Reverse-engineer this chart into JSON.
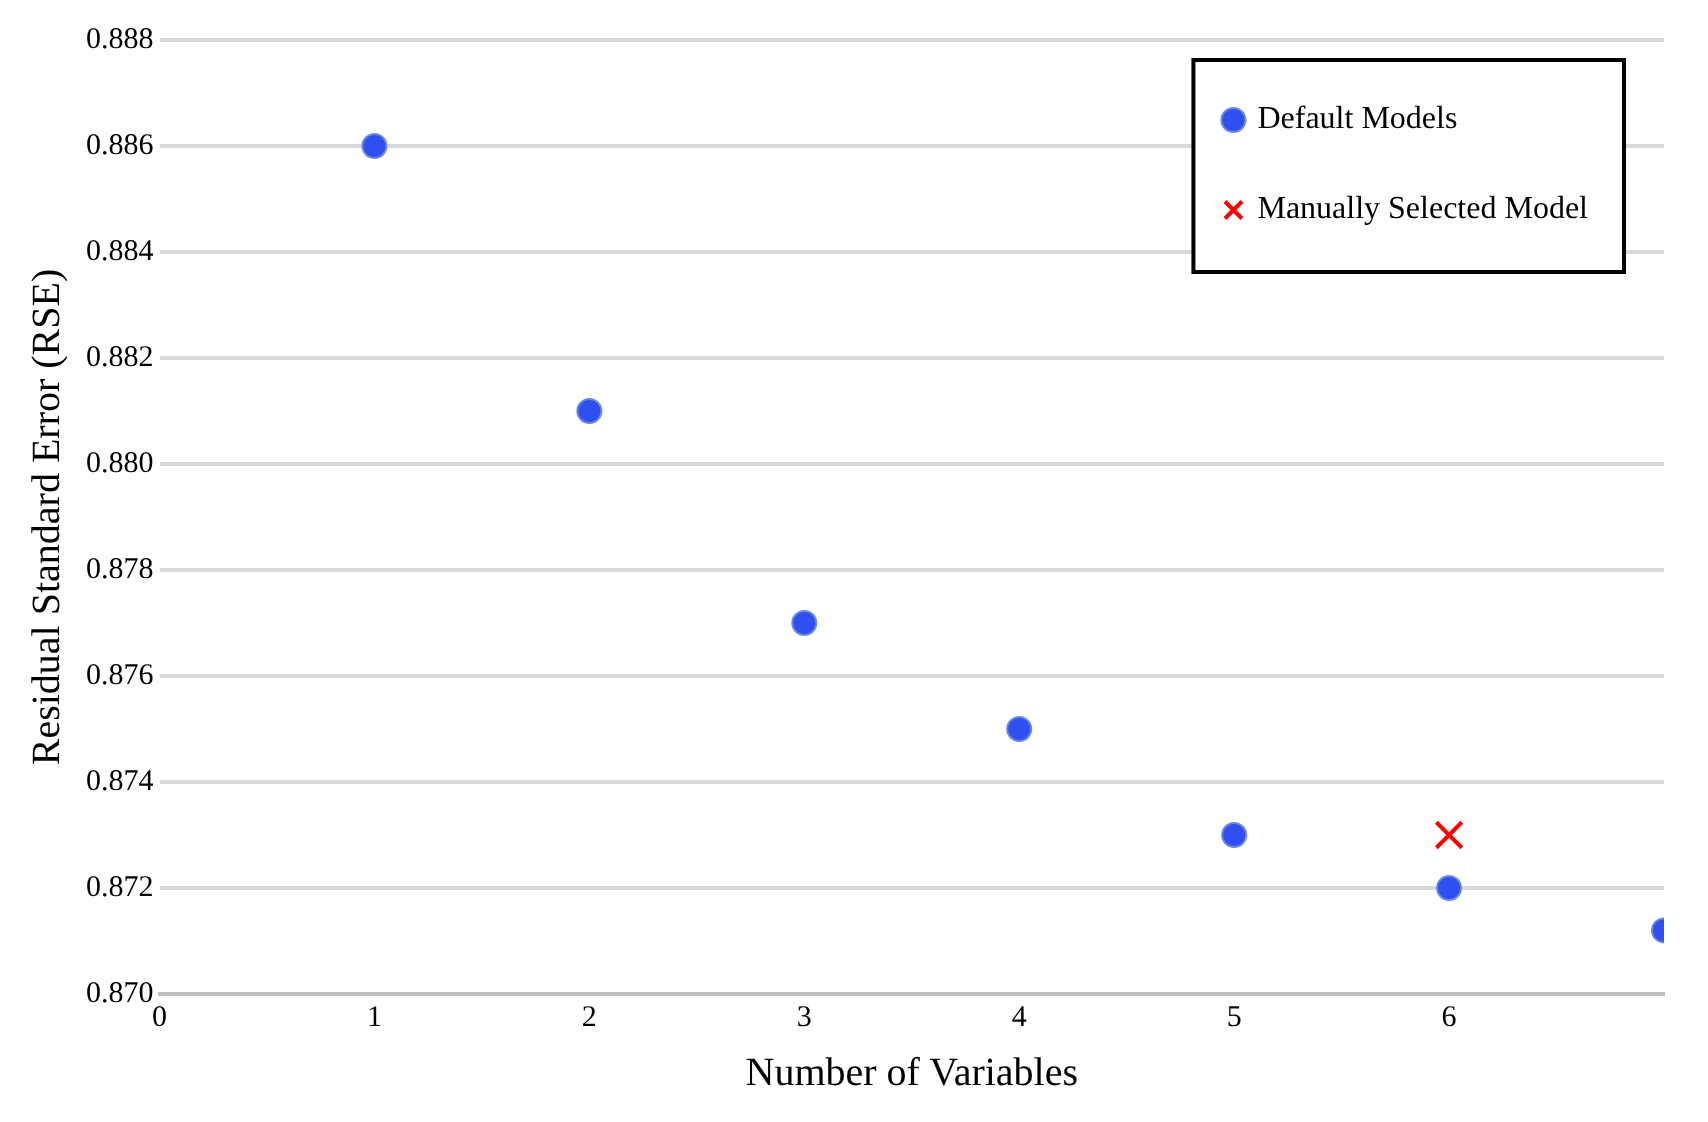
{
  "chart_data": {
    "type": "scatter",
    "xlabel": "Number of Variables",
    "ylabel": "Residual Standard Error (RSE)",
    "series": [
      {
        "name": "Default Models",
        "color": "#2f4ff0",
        "marker": "circle",
        "x": [
          1,
          2,
          3,
          4,
          5,
          6,
          7
        ],
        "values": [
          0.886,
          0.881,
          0.877,
          0.875,
          0.873,
          0.872,
          0.8712
        ]
      },
      {
        "name": "Manually Selected Model",
        "color": "#ff0000",
        "marker": "cross",
        "x": [
          6
        ],
        "values": [
          0.873
        ]
      }
    ],
    "xlim": [
      0,
      7
    ],
    "xticks": [
      0,
      1,
      2,
      3,
      4,
      5,
      6
    ],
    "ylim": [
      0.87,
      0.888
    ],
    "yticks": [
      {
        "value": 0.87,
        "label": "0.870"
      },
      {
        "value": 0.872,
        "label": "0.872"
      },
      {
        "value": 0.874,
        "label": "0.874"
      },
      {
        "value": 0.876,
        "label": "0.876"
      },
      {
        "value": 0.878,
        "label": "0.878"
      },
      {
        "value": 0.88,
        "label": "0.880"
      },
      {
        "value": 0.882,
        "label": "0.882"
      },
      {
        "value": 0.884,
        "label": "0.884"
      },
      {
        "value": 0.886,
        "label": "0.886"
      },
      {
        "value": 0.888,
        "label": "0.888"
      }
    ],
    "grid": "y",
    "legend": "top right"
  }
}
